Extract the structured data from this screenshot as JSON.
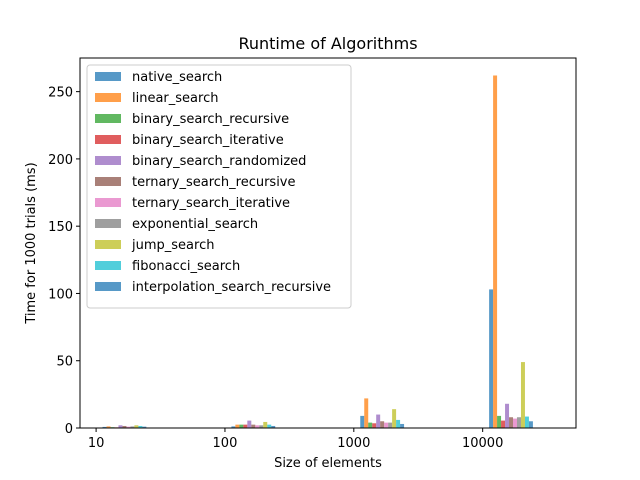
{
  "chart_data": {
    "type": "bar",
    "title": "Runtime of Algorithms",
    "xlabel": "Size of elements",
    "ylabel": "Time for 1000 trials (ms)",
    "x_scale": "log",
    "categories": [
      "10",
      "100",
      "1000",
      "10000"
    ],
    "x_values": [
      10,
      100,
      1000,
      10000
    ],
    "xlim": [
      7.5,
      53000
    ],
    "ylim": [
      0,
      275
    ],
    "yticks": [
      0,
      50,
      100,
      150,
      200,
      250
    ],
    "grid": false,
    "legend_position": "top-left",
    "series": [
      {
        "name": "native_search",
        "color": "#1f77b4",
        "values": [
          0.8,
          1.2,
          9,
          103
        ]
      },
      {
        "name": "linear_search",
        "color": "#ff7f0e",
        "values": [
          1.2,
          2.5,
          22,
          262
        ]
      },
      {
        "name": "binary_search_recursive",
        "color": "#2ca02c",
        "values": [
          0.6,
          2.5,
          4,
          9
        ]
      },
      {
        "name": "binary_search_iterative",
        "color": "#d62728",
        "values": [
          0.5,
          2.5,
          3.5,
          5.5
        ]
      },
      {
        "name": "binary_search_randomized",
        "color": "#9467bd",
        "values": [
          2,
          5.5,
          10,
          18
        ]
      },
      {
        "name": "ternary_search_recursive",
        "color": "#8c564b",
        "values": [
          1.5,
          2.5,
          5,
          8
        ]
      },
      {
        "name": "ternary_search_iterative",
        "color": "#e377c2",
        "values": [
          1,
          2,
          4,
          7
        ]
      },
      {
        "name": "exponential_search",
        "color": "#7f7f7f",
        "values": [
          1.2,
          2,
          4,
          8
        ]
      },
      {
        "name": "jump_search",
        "color": "#bcbd22",
        "values": [
          2,
          4.5,
          14,
          49
        ]
      },
      {
        "name": "fibonacci_search",
        "color": "#17becf",
        "values": [
          1.5,
          2.5,
          6,
          8.5
        ]
      },
      {
        "name": "interpolation_search_recursive",
        "color": "#1f77b4",
        "values": [
          1,
          1.5,
          3,
          5
        ]
      }
    ]
  }
}
